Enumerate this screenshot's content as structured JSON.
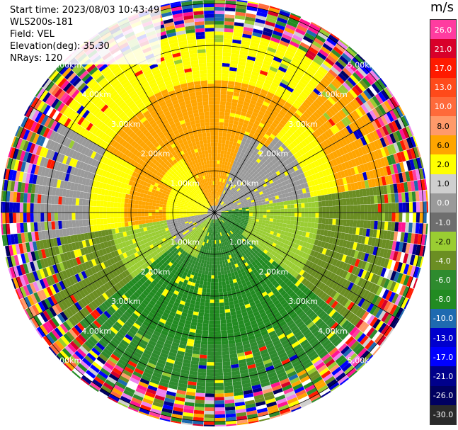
{
  "info": {
    "start_time": "Start time: 2023/08/03 10:43:49",
    "instrument": "WLS200s-181",
    "field": "Field: VEL",
    "elevation": "Elevation(deg): 35.30",
    "nrays": "NRays: 120"
  },
  "colorbar": {
    "unit": "m/s",
    "levels": [
      "26.0",
      "21.0",
      "17.0",
      "13.0",
      "10.0",
      "8.0",
      "6.0",
      "2.0",
      "1.0",
      "0.0",
      "-1.0",
      "-2.0",
      "-4.0",
      "-6.0",
      "-8.0",
      "-10.0",
      "-13.0",
      "-17.0",
      "-21.0",
      "-26.0",
      "-30.0"
    ],
    "colors": [
      "#ff3ca0",
      "#d8002a",
      "#ff1a00",
      "#ff4a1a",
      "#ff6a3a",
      "#ff9a6a",
      "#ffa500",
      "#ffff00",
      "#cfcfcf",
      "#9a9a9a",
      "#6e6e6e",
      "#9acd32",
      "#6b8e23",
      "#2e8b2e",
      "#228b22",
      "#1e6ab0",
      "#0000cd",
      "#0000ff",
      "#00008b",
      "#000060",
      "#2a2a2a"
    ]
  },
  "ring_labels": [
    "1.00km",
    "2.00km",
    "3.00km",
    "4.00km",
    "5.00km"
  ]
}
